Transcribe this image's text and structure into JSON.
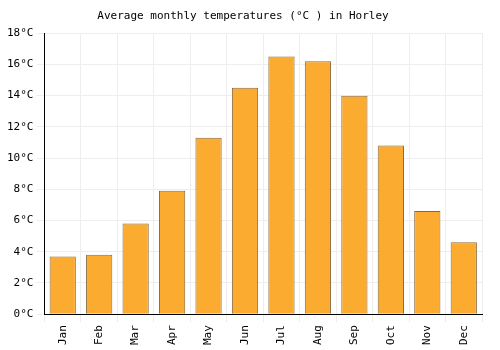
{
  "chart_data": {
    "type": "bar",
    "title": "Average monthly temperatures (°C ) in Horley",
    "categories": [
      "Jan",
      "Feb",
      "Mar",
      "Apr",
      "May",
      "Jun",
      "Jul",
      "Aug",
      "Sep",
      "Oct",
      "Nov",
      "Dec"
    ],
    "values": [
      3.7,
      3.8,
      5.8,
      7.9,
      11.3,
      14.5,
      16.5,
      16.2,
      14.0,
      10.8,
      6.6,
      4.6
    ],
    "color": "#fbab2f",
    "ylim": [
      0,
      18
    ],
    "yticks": [
      {
        "value": 0,
        "label": "0°C"
      },
      {
        "value": 2,
        "label": "2°C"
      },
      {
        "value": 4,
        "label": "4°C"
      },
      {
        "value": 6,
        "label": "6°C"
      },
      {
        "value": 8,
        "label": "8°C"
      },
      {
        "value": 10,
        "label": "10°C"
      },
      {
        "value": 12,
        "label": "12°C"
      },
      {
        "value": 14,
        "label": "14°C"
      },
      {
        "value": 16,
        "label": "16°C"
      },
      {
        "value": 18,
        "label": "18°C"
      }
    ],
    "grid": true
  }
}
